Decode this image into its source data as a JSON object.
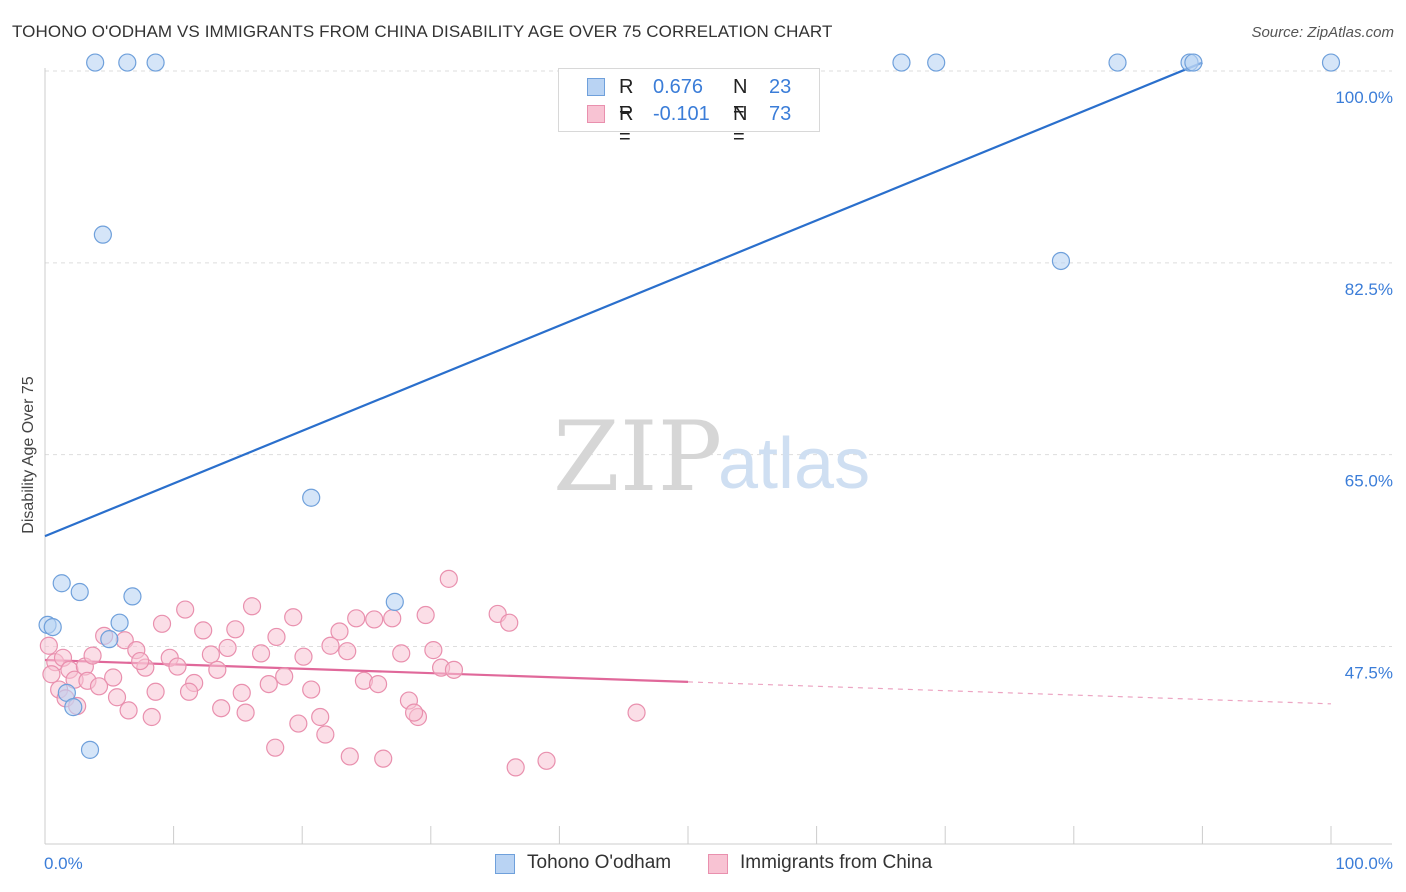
{
  "title": "TOHONO O'ODHAM VS IMMIGRANTS FROM CHINA DISABILITY AGE OVER 75 CORRELATION CHART",
  "source": "Source: ZipAtlas.com",
  "watermark": {
    "zip": "ZIP",
    "atlas": "atlas"
  },
  "legend": {
    "series1": {
      "r_label": "R =",
      "r_value": "0.676",
      "n_label": "N =",
      "n_value": "23"
    },
    "series2": {
      "r_label": "R =",
      "r_value": "-0.101",
      "n_label": "N =",
      "n_value": "73"
    }
  },
  "bottom_legend": {
    "series1": "Tohono O'odham",
    "series2": "Immigrants from China"
  },
  "colors": {
    "blue_fill": "#b9d3f3",
    "blue_stroke": "#6fa0db",
    "blue_line": "#2a6fcc",
    "pink_fill": "#f8c3d3",
    "pink_stroke": "#e990ae",
    "pink_line": "#e0689a",
    "tick_text": "#3b7dd8",
    "grid": "#dddddd"
  },
  "chart_data": {
    "type": "scatter",
    "title": "TOHONO O'ODHAM VS IMMIGRANTS FROM CHINA DISABILITY AGE OVER 75 CORRELATION CHART",
    "xlabel": "",
    "ylabel": "Disability Age Over 75",
    "xlim": [
      0,
      100
    ],
    "ylim": [
      30,
      102
    ],
    "x_tick_labels": [
      "0.0%",
      "100.0%"
    ],
    "y_ticks": [
      47.5,
      65.0,
      82.5,
      100.0
    ],
    "y_tick_labels": [
      "47.5%",
      "65.0%",
      "82.5%",
      "100.0%"
    ],
    "series": [
      {
        "name": "Tohono O'odham",
        "r": 0.676,
        "n": 23,
        "trend": {
          "x": [
            0,
            90
          ],
          "y": [
            58.3,
            101.5
          ]
        },
        "points": [
          [
            3.9,
            101.5
          ],
          [
            6.4,
            101.5
          ],
          [
            8.6,
            101.5
          ],
          [
            66.6,
            101.5
          ],
          [
            69.3,
            101.5
          ],
          [
            83.4,
            101.5
          ],
          [
            89.0,
            101.5
          ],
          [
            89.3,
            101.5
          ],
          [
            100.0,
            101.5
          ],
          [
            4.5,
            85.8
          ],
          [
            79.0,
            83.4
          ],
          [
            20.7,
            61.8
          ],
          [
            1.3,
            54.0
          ],
          [
            2.7,
            53.2
          ],
          [
            6.8,
            52.8
          ],
          [
            27.2,
            52.3
          ],
          [
            0.2,
            50.2
          ],
          [
            0.6,
            50.0
          ],
          [
            5.8,
            50.4
          ],
          [
            5.0,
            48.9
          ],
          [
            1.7,
            44.0
          ],
          [
            2.2,
            42.7
          ],
          [
            3.5,
            38.8
          ]
        ]
      },
      {
        "name": "Immigrants from China",
        "r": -0.101,
        "n": 73,
        "trend": {
          "x": [
            0,
            50
          ],
          "y": [
            47.0,
            45.0
          ]
        },
        "trend_dashed": {
          "x": [
            50,
            100
          ],
          "y": [
            45.0,
            43.0
          ]
        },
        "points": [
          [
            0.3,
            48.3
          ],
          [
            0.8,
            46.8
          ],
          [
            1.4,
            47.2
          ],
          [
            1.9,
            46.1
          ],
          [
            2.3,
            45.2
          ],
          [
            3.1,
            46.4
          ],
          [
            3.7,
            47.4
          ],
          [
            4.6,
            49.2
          ],
          [
            5.3,
            45.4
          ],
          [
            6.2,
            48.8
          ],
          [
            7.1,
            47.9
          ],
          [
            7.8,
            46.3
          ],
          [
            8.6,
            44.1
          ],
          [
            9.1,
            50.3
          ],
          [
            9.7,
            47.2
          ],
          [
            10.3,
            46.4
          ],
          [
            10.9,
            51.6
          ],
          [
            11.6,
            44.9
          ],
          [
            12.3,
            49.7
          ],
          [
            12.9,
            47.5
          ],
          [
            13.4,
            46.1
          ],
          [
            14.2,
            48.1
          ],
          [
            14.8,
            49.8
          ],
          [
            15.3,
            44.0
          ],
          [
            16.1,
            51.9
          ],
          [
            16.8,
            47.6
          ],
          [
            17.4,
            44.8
          ],
          [
            18.0,
            49.1
          ],
          [
            18.6,
            45.5
          ],
          [
            19.3,
            50.9
          ],
          [
            20.1,
            47.3
          ],
          [
            20.7,
            44.3
          ],
          [
            21.4,
            41.8
          ],
          [
            22.2,
            48.3
          ],
          [
            22.9,
            49.6
          ],
          [
            23.5,
            47.8
          ],
          [
            24.2,
            50.8
          ],
          [
            24.8,
            45.1
          ],
          [
            25.6,
            50.7
          ],
          [
            26.3,
            38.0
          ],
          [
            27.0,
            50.8
          ],
          [
            27.7,
            47.6
          ],
          [
            28.3,
            43.3
          ],
          [
            29.0,
            41.8
          ],
          [
            29.6,
            51.1
          ],
          [
            30.2,
            47.9
          ],
          [
            30.8,
            46.3
          ],
          [
            31.4,
            54.4
          ],
          [
            0.5,
            45.7
          ],
          [
            1.1,
            44.3
          ],
          [
            1.6,
            43.5
          ],
          [
            2.5,
            42.8
          ],
          [
            3.3,
            45.1
          ],
          [
            4.2,
            44.6
          ],
          [
            5.6,
            43.6
          ],
          [
            6.5,
            42.4
          ],
          [
            7.4,
            46.9
          ],
          [
            8.3,
            41.8
          ],
          [
            11.2,
            44.1
          ],
          [
            13.7,
            42.6
          ],
          [
            15.6,
            42.2
          ],
          [
            17.9,
            39.0
          ],
          [
            19.7,
            41.2
          ],
          [
            21.8,
            40.2
          ],
          [
            23.7,
            38.2
          ],
          [
            25.9,
            44.8
          ],
          [
            28.7,
            42.2
          ],
          [
            31.8,
            46.1
          ],
          [
            35.2,
            51.2
          ],
          [
            36.1,
            50.4
          ],
          [
            36.6,
            37.2
          ],
          [
            39.0,
            37.8
          ],
          [
            46.0,
            42.2
          ]
        ]
      }
    ]
  }
}
